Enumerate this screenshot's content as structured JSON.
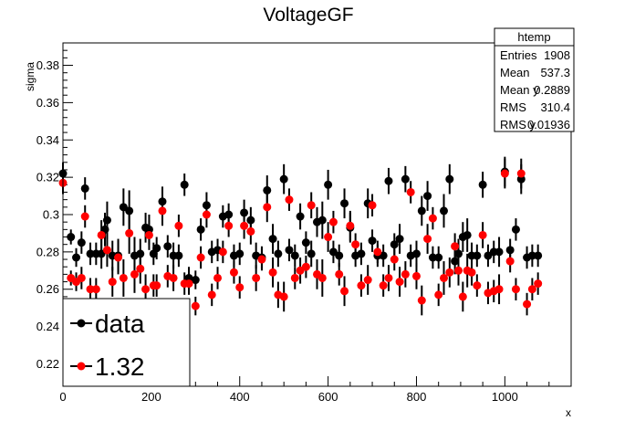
{
  "chart_data": {
    "type": "scatter",
    "title": "VoltageGF",
    "xlabel": "x",
    "ylabel": "sigma",
    "xlim": [
      0,
      1150
    ],
    "ylim": [
      0.208,
      0.392
    ],
    "xticks": [
      0,
      200,
      400,
      600,
      800,
      1000
    ],
    "yticks": [
      0.22,
      0.24,
      0.26,
      0.28,
      0.3,
      0.32,
      0.34,
      0.36,
      0.38
    ],
    "ytick_labels": [
      "0.22",
      "0.24",
      "0.26",
      "0.28",
      "0.3",
      "0.32",
      "0.34",
      "0.36",
      "0.38"
    ],
    "grid": false,
    "legend_placement": "bottom-left",
    "series": [
      {
        "name": "data",
        "color": "#000000",
        "marker": "circle",
        "points": [
          [
            0,
            0.322,
            0.006
          ],
          [
            18,
            0.288,
            0.004
          ],
          [
            30,
            0.277,
            0.005
          ],
          [
            42,
            0.285,
            0.006
          ],
          [
            50,
            0.314,
            0.006
          ],
          [
            62,
            0.279,
            0.006
          ],
          [
            75,
            0.279,
            0.006
          ],
          [
            87,
            0.279,
            0.008
          ],
          [
            95,
            0.292,
            0.009
          ],
          [
            100,
            0.297,
            0.01
          ],
          [
            112,
            0.278,
            0.008
          ],
          [
            125,
            0.278,
            0.009
          ],
          [
            137,
            0.304,
            0.01
          ],
          [
            150,
            0.302,
            0.011
          ],
          [
            162,
            0.278,
            0.01
          ],
          [
            175,
            0.279,
            0.008
          ],
          [
            187,
            0.293,
            0.008
          ],
          [
            195,
            0.292,
            0.008
          ],
          [
            205,
            0.279,
            0.006
          ],
          [
            212,
            0.282,
            0.006
          ],
          [
            225,
            0.307,
            0.008
          ],
          [
            237,
            0.283,
            0.006
          ],
          [
            250,
            0.278,
            0.007
          ],
          [
            262,
            0.278,
            0.006
          ],
          [
            275,
            0.316,
            0.006
          ],
          [
            285,
            0.266,
            0.006
          ],
          [
            300,
            0.265,
            0.005
          ],
          [
            312,
            0.292,
            0.006
          ],
          [
            325,
            0.305,
            0.007
          ],
          [
            337,
            0.28,
            0.006
          ],
          [
            350,
            0.281,
            0.006
          ],
          [
            362,
            0.299,
            0.006
          ],
          [
            375,
            0.3,
            0.006
          ],
          [
            387,
            0.278,
            0.006
          ],
          [
            400,
            0.279,
            0.006
          ],
          [
            410,
            0.301,
            0.007
          ],
          [
            425,
            0.297,
            0.007
          ],
          [
            437,
            0.278,
            0.007
          ],
          [
            450,
            0.277,
            0.006
          ],
          [
            462,
            0.313,
            0.008
          ],
          [
            475,
            0.287,
            0.008
          ],
          [
            487,
            0.279,
            0.007
          ],
          [
            500,
            0.319,
            0.008
          ],
          [
            512,
            0.281,
            0.006
          ],
          [
            525,
            0.278,
            0.006
          ],
          [
            537,
            0.299,
            0.007
          ],
          [
            550,
            0.285,
            0.006
          ],
          [
            562,
            0.279,
            0.007
          ],
          [
            575,
            0.296,
            0.008
          ],
          [
            587,
            0.297,
            0.01
          ],
          [
            600,
            0.316,
            0.008
          ],
          [
            612,
            0.28,
            0.006
          ],
          [
            625,
            0.278,
            0.006
          ],
          [
            637,
            0.306,
            0.008
          ],
          [
            650,
            0.293,
            0.008
          ],
          [
            662,
            0.278,
            0.006
          ],
          [
            675,
            0.279,
            0.006
          ],
          [
            690,
            0.306,
            0.008
          ],
          [
            700,
            0.286,
            0.006
          ],
          [
            712,
            0.278,
            0.006
          ],
          [
            725,
            0.278,
            0.006
          ],
          [
            737,
            0.318,
            0.007
          ],
          [
            750,
            0.284,
            0.006
          ],
          [
            762,
            0.287,
            0.008
          ],
          [
            775,
            0.319,
            0.007
          ],
          [
            787,
            0.278,
            0.006
          ],
          [
            800,
            0.279,
            0.007
          ],
          [
            812,
            0.302,
            0.008
          ],
          [
            825,
            0.31,
            0.008
          ],
          [
            837,
            0.277,
            0.006
          ],
          [
            850,
            0.277,
            0.006
          ],
          [
            862,
            0.302,
            0.009
          ],
          [
            875,
            0.319,
            0.008
          ],
          [
            887,
            0.275,
            0.007
          ],
          [
            895,
            0.279,
            0.008
          ],
          [
            905,
            0.288,
            0.008
          ],
          [
            915,
            0.289,
            0.009
          ],
          [
            925,
            0.278,
            0.007
          ],
          [
            937,
            0.278,
            0.006
          ],
          [
            950,
            0.316,
            0.007
          ],
          [
            962,
            0.278,
            0.006
          ],
          [
            975,
            0.28,
            0.006
          ],
          [
            987,
            0.28,
            0.008
          ],
          [
            1000,
            0.323,
            0.008
          ],
          [
            1012,
            0.281,
            0.006
          ],
          [
            1025,
            0.292,
            0.006
          ],
          [
            1037,
            0.319,
            0.008
          ],
          [
            1050,
            0.277,
            0.006
          ],
          [
            1062,
            0.278,
            0.006
          ],
          [
            1075,
            0.278,
            0.006
          ]
        ]
      },
      {
        "name": "1.32",
        "color": "#ff0000",
        "marker": "circle",
        "points": [
          [
            0,
            0.317,
            0.006
          ],
          [
            18,
            0.266,
            0.004
          ],
          [
            30,
            0.264,
            0.005
          ],
          [
            42,
            0.266,
            0.006
          ],
          [
            50,
            0.299,
            0.006
          ],
          [
            62,
            0.26,
            0.006
          ],
          [
            75,
            0.26,
            0.006
          ],
          [
            87,
            0.289,
            0.008
          ],
          [
            100,
            0.281,
            0.009
          ],
          [
            112,
            0.264,
            0.008
          ],
          [
            125,
            0.277,
            0.009
          ],
          [
            137,
            0.266,
            0.01
          ],
          [
            150,
            0.29,
            0.011
          ],
          [
            162,
            0.268,
            0.01
          ],
          [
            175,
            0.271,
            0.008
          ],
          [
            187,
            0.26,
            0.008
          ],
          [
            195,
            0.289,
            0.008
          ],
          [
            205,
            0.262,
            0.006
          ],
          [
            212,
            0.262,
            0.006
          ],
          [
            225,
            0.302,
            0.008
          ],
          [
            237,
            0.267,
            0.006
          ],
          [
            250,
            0.266,
            0.007
          ],
          [
            262,
            0.294,
            0.006
          ],
          [
            275,
            0.263,
            0.006
          ],
          [
            285,
            0.263,
            0.006
          ],
          [
            300,
            0.251,
            0.005
          ],
          [
            312,
            0.277,
            0.006
          ],
          [
            325,
            0.3,
            0.007
          ],
          [
            337,
            0.257,
            0.006
          ],
          [
            350,
            0.266,
            0.006
          ],
          [
            362,
            0.28,
            0.006
          ],
          [
            375,
            0.294,
            0.006
          ],
          [
            387,
            0.269,
            0.006
          ],
          [
            400,
            0.261,
            0.006
          ],
          [
            410,
            0.294,
            0.007
          ],
          [
            425,
            0.291,
            0.007
          ],
          [
            437,
            0.266,
            0.007
          ],
          [
            450,
            0.276,
            0.006
          ],
          [
            462,
            0.304,
            0.008
          ],
          [
            475,
            0.269,
            0.008
          ],
          [
            487,
            0.257,
            0.007
          ],
          [
            500,
            0.256,
            0.008
          ],
          [
            512,
            0.308,
            0.006
          ],
          [
            525,
            0.266,
            0.006
          ],
          [
            537,
            0.27,
            0.007
          ],
          [
            550,
            0.272,
            0.006
          ],
          [
            562,
            0.305,
            0.007
          ],
          [
            575,
            0.268,
            0.008
          ],
          [
            587,
            0.266,
            0.01
          ],
          [
            600,
            0.288,
            0.008
          ],
          [
            612,
            0.296,
            0.006
          ],
          [
            625,
            0.268,
            0.006
          ],
          [
            637,
            0.259,
            0.008
          ],
          [
            650,
            0.294,
            0.008
          ],
          [
            662,
            0.284,
            0.006
          ],
          [
            675,
            0.262,
            0.006
          ],
          [
            690,
            0.265,
            0.008
          ],
          [
            700,
            0.305,
            0.006
          ],
          [
            712,
            0.28,
            0.006
          ],
          [
            725,
            0.262,
            0.006
          ],
          [
            737,
            0.266,
            0.007
          ],
          [
            750,
            0.276,
            0.006
          ],
          [
            762,
            0.264,
            0.008
          ],
          [
            775,
            0.268,
            0.007
          ],
          [
            787,
            0.312,
            0.006
          ],
          [
            800,
            0.267,
            0.007
          ],
          [
            812,
            0.254,
            0.008
          ],
          [
            825,
            0.287,
            0.008
          ],
          [
            837,
            0.298,
            0.006
          ],
          [
            850,
            0.257,
            0.006
          ],
          [
            862,
            0.266,
            0.009
          ],
          [
            875,
            0.269,
            0.008
          ],
          [
            887,
            0.283,
            0.007
          ],
          [
            895,
            0.27,
            0.008
          ],
          [
            905,
            0.256,
            0.008
          ],
          [
            915,
            0.27,
            0.009
          ],
          [
            925,
            0.269,
            0.007
          ],
          [
            937,
            0.262,
            0.006
          ],
          [
            950,
            0.289,
            0.007
          ],
          [
            962,
            0.258,
            0.006
          ],
          [
            975,
            0.259,
            0.006
          ],
          [
            987,
            0.26,
            0.008
          ],
          [
            1000,
            0.322,
            0.008
          ],
          [
            1012,
            0.275,
            0.006
          ],
          [
            1025,
            0.26,
            0.006
          ],
          [
            1037,
            0.322,
            0.008
          ],
          [
            1050,
            0.252,
            0.006
          ],
          [
            1062,
            0.26,
            0.006
          ],
          [
            1075,
            0.263,
            0.006
          ]
        ]
      }
    ],
    "stats_box": {
      "title": "htemp",
      "rows": [
        {
          "label": "Entries",
          "value": "1908"
        },
        {
          "label": "Mean",
          "value": "537.3"
        },
        {
          "label": "Mean y",
          "value": "0.2889"
        },
        {
          "label": "RMS",
          "value": "310.4"
        },
        {
          "label": "RMS y",
          "value": "0.01936"
        }
      ]
    }
  }
}
